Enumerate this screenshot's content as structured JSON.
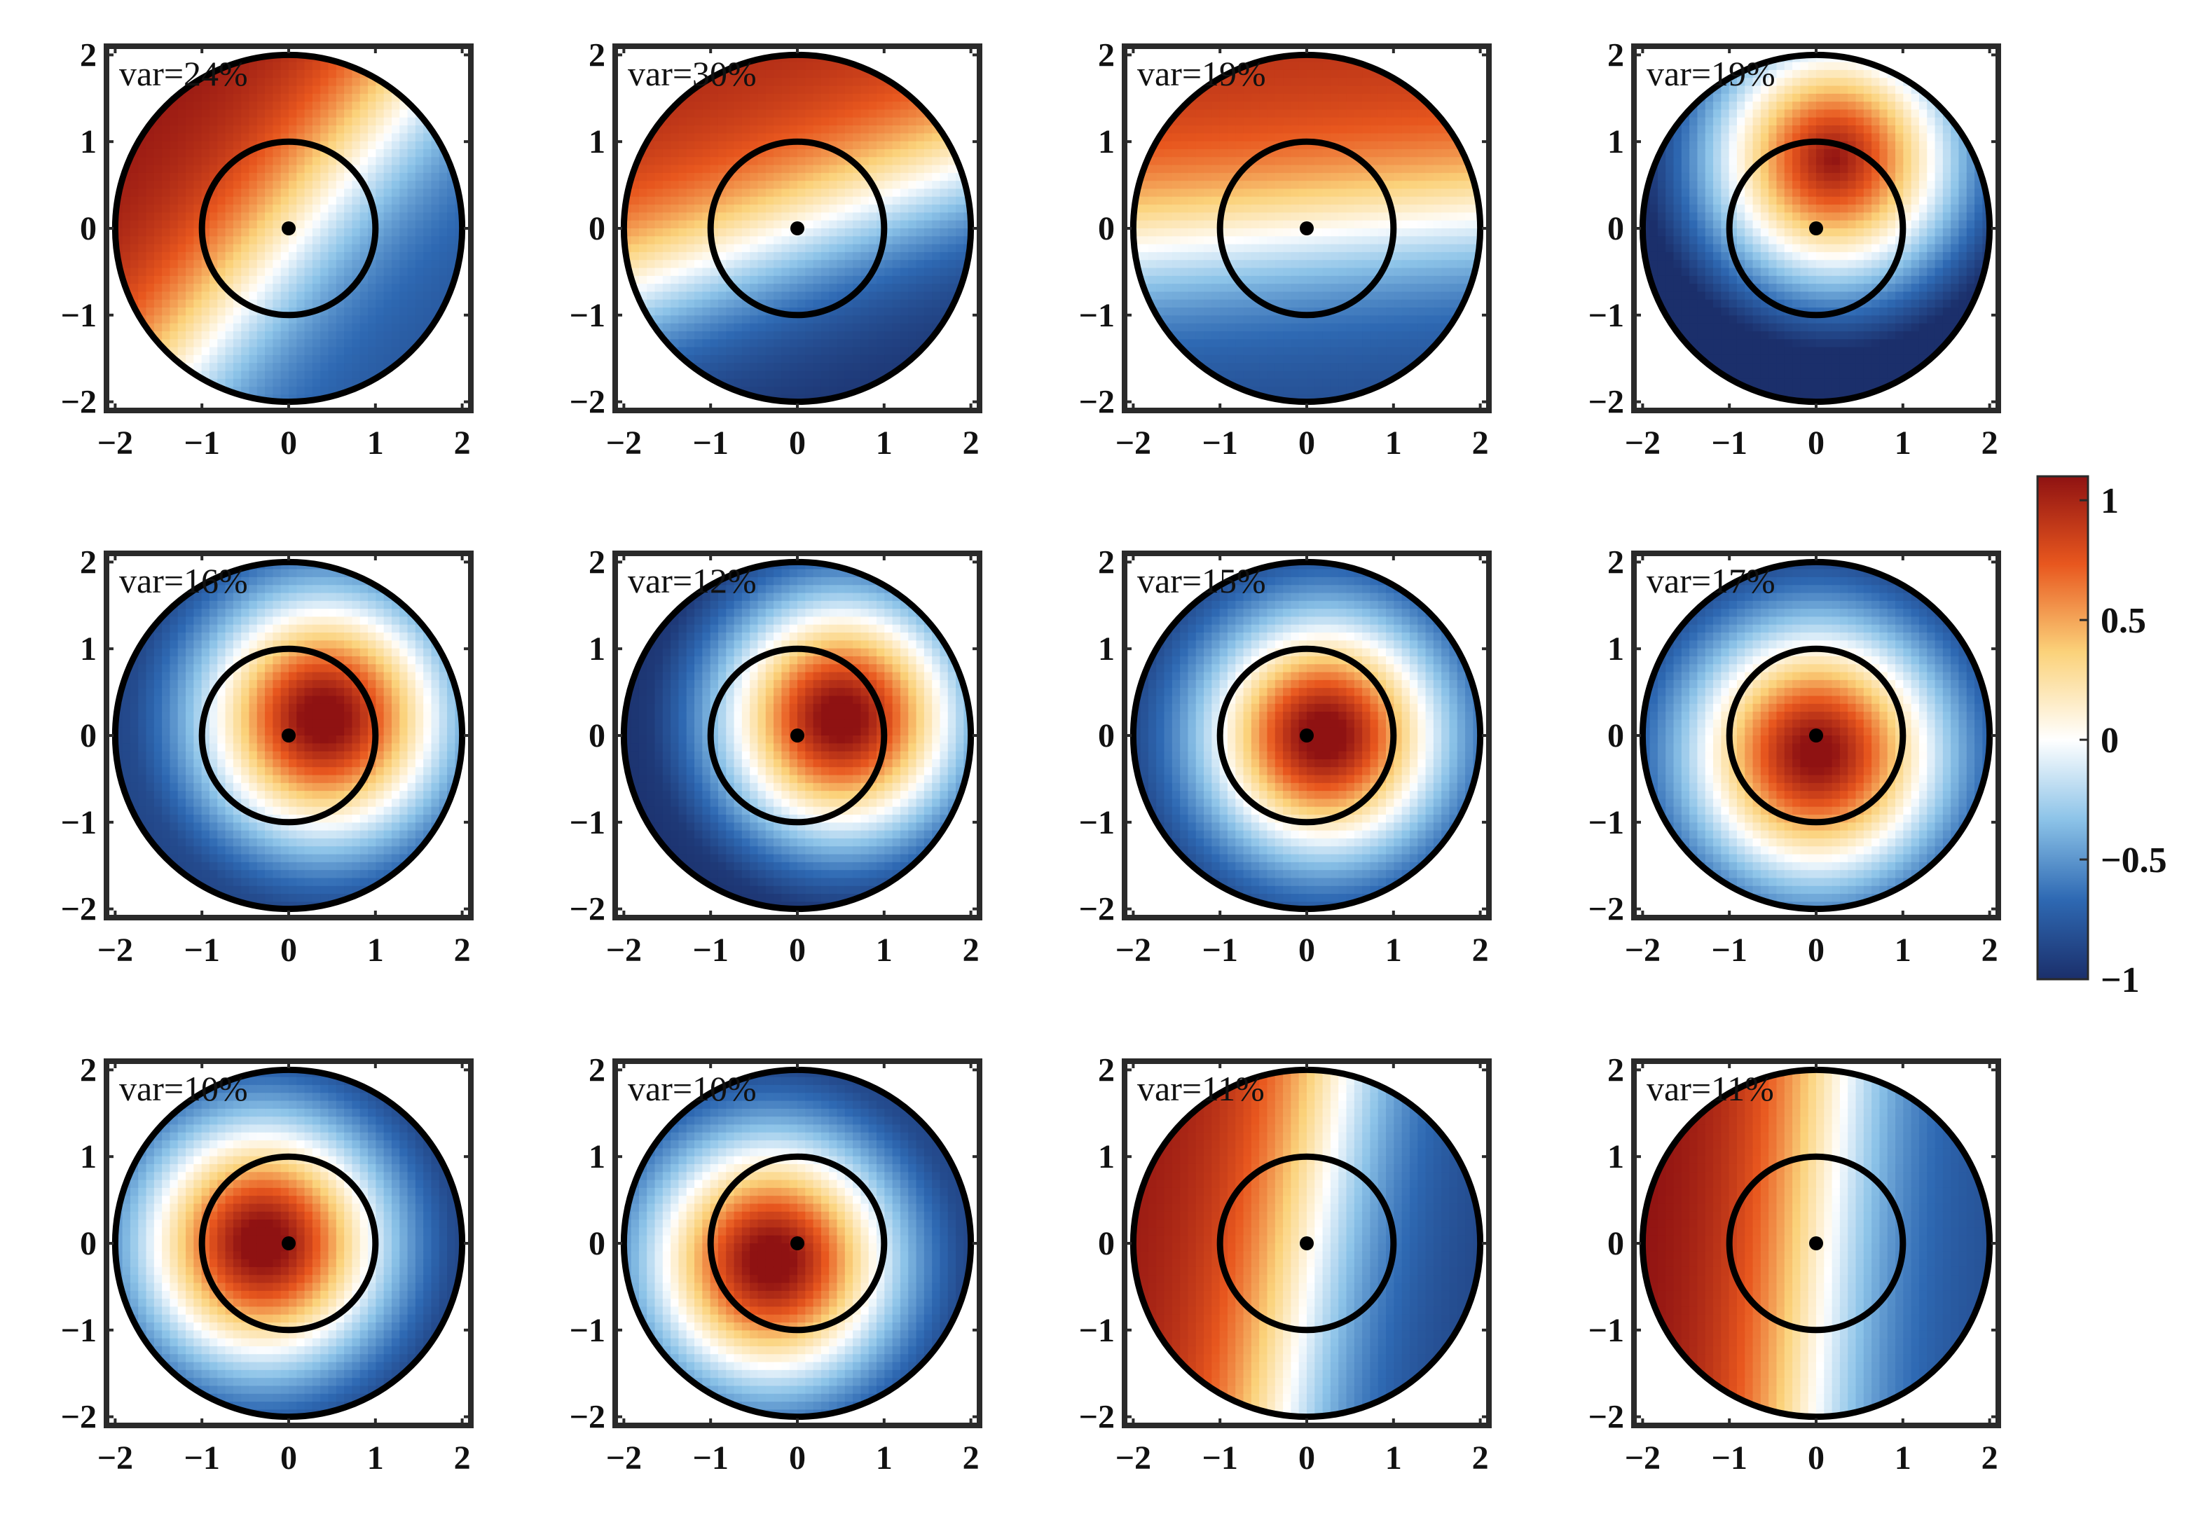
{
  "chart_data": {
    "type": "heatmap",
    "layout": {
      "rows": 3,
      "cols": 4
    },
    "title": "",
    "xlabel": "",
    "ylabel": "",
    "xlim": [
      -2.1,
      2.1
    ],
    "ylim": [
      -2.1,
      2.1
    ],
    "xticks": [
      "−2",
      "−1",
      "0",
      "1",
      "2"
    ],
    "yticks": [
      "2",
      "1",
      "0",
      "−1",
      "−2"
    ],
    "tick_values": [
      -2,
      -1,
      0,
      1,
      2
    ],
    "outer_circle_radius": 2.0,
    "inner_circle_radius": 1.0,
    "center_point": [
      0,
      0
    ],
    "grid": false,
    "panels": [
      {
        "label": "var=24%",
        "pattern": "gradient",
        "angle": 140,
        "amplitude": 0.95,
        "center": [
          0,
          0
        ],
        "sigma": 0,
        "offset": 0.15
      },
      {
        "label": "var=30%",
        "pattern": "gradient",
        "angle": 110,
        "amplitude": 1.0,
        "center": [
          0,
          0
        ],
        "sigma": 0,
        "offset": 0.0
      },
      {
        "label": "var=19%",
        "pattern": "gradient",
        "angle": 95,
        "amplitude": 0.9,
        "center": [
          0,
          0
        ],
        "sigma": 0,
        "offset": 0.05
      },
      {
        "label": "var=19%",
        "pattern": "blob",
        "angle": 0,
        "amplitude": 1.1,
        "center": [
          0.2,
          0.8
        ],
        "sigma": 1.0,
        "offset": -0.55
      },
      {
        "label": "var=16%",
        "pattern": "blob",
        "angle": 0,
        "amplitude": 1.25,
        "center": [
          0.4,
          0.2
        ],
        "sigma": 0.9,
        "offset": -0.45
      },
      {
        "label": "var=12%",
        "pattern": "blob",
        "angle": 0,
        "amplitude": 1.25,
        "center": [
          0.5,
          0.2
        ],
        "sigma": 0.9,
        "offset": -0.5
      },
      {
        "label": "var=15%",
        "pattern": "blob",
        "angle": 0,
        "amplitude": 1.25,
        "center": [
          0.2,
          0.0
        ],
        "sigma": 0.85,
        "offset": -0.45
      },
      {
        "label": "var=17%",
        "pattern": "blob",
        "angle": 0,
        "amplitude": 1.2,
        "center": [
          0.0,
          -0.2
        ],
        "sigma": 0.95,
        "offset": -0.45
      },
      {
        "label": "var=10%",
        "pattern": "blob",
        "angle": 0,
        "amplitude": 1.25,
        "center": [
          -0.3,
          0.0
        ],
        "sigma": 0.9,
        "offset": -0.45
      },
      {
        "label": "var=10%",
        "pattern": "blob",
        "angle": 0,
        "amplitude": 1.25,
        "center": [
          -0.3,
          -0.2
        ],
        "sigma": 0.9,
        "offset": -0.45
      },
      {
        "label": "var=11%",
        "pattern": "gradient",
        "angle": 170,
        "amplitude": 1.0,
        "center": [
          0,
          0
        ],
        "sigma": 0,
        "offset": 0.1
      },
      {
        "label": "var=11%",
        "pattern": "gradient",
        "angle": 175,
        "amplitude": 1.0,
        "center": [
          0,
          0
        ],
        "sigma": 0,
        "offset": 0.15
      }
    ],
    "colorbar": {
      "colormap": "diverging red-white-blue",
      "range": [
        -1,
        1.1
      ],
      "ticks": [
        {
          "value": 1,
          "label": "1"
        },
        {
          "value": 0.5,
          "label": "0.5"
        },
        {
          "value": 0,
          "label": "0"
        },
        {
          "value": -0.5,
          "label": "−0.5"
        },
        {
          "value": -1,
          "label": "−1"
        }
      ],
      "colors": [
        "#1b2f6b",
        "#2e69b3",
        "#8cc3e8",
        "#ffffff",
        "#fbd27a",
        "#e8571e",
        "#8f1212"
      ]
    }
  }
}
